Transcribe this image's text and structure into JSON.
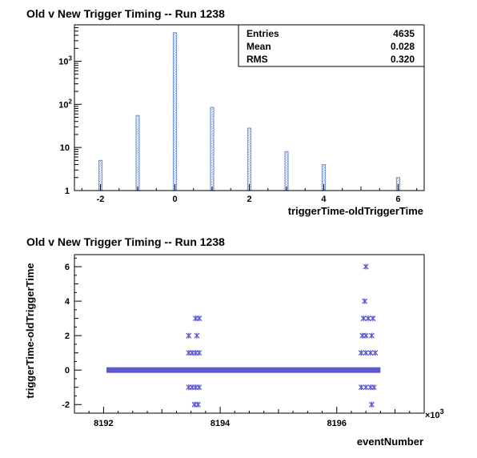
{
  "chart_data": [
    {
      "type": "bar",
      "title": "Old v New Trigger Timing -- Run 1238",
      "xlabel": "triggerTime-oldTriggerTime",
      "ylabel": "",
      "yscale": "log",
      "xlim": [
        -2.7,
        6.7
      ],
      "ylim": [
        1,
        7000
      ],
      "x_ticks": [
        -2,
        0,
        2,
        4,
        6
      ],
      "y_ticks": [
        {
          "value": 1,
          "label": "1"
        },
        {
          "value": 10,
          "label": "10"
        },
        {
          "value": 100,
          "label": "10",
          "exp": "2"
        },
        {
          "value": 1000,
          "label": "10",
          "exp": "3"
        }
      ],
      "bar_color": "#7c9bd6",
      "grid": false,
      "x": [
        -2,
        -1,
        0,
        1,
        2,
        3,
        4,
        6
      ],
      "values": [
        5,
        55,
        4600,
        85,
        28,
        8,
        4,
        2
      ],
      "stats": {
        "position": "top-right",
        "rows": [
          {
            "label": "Entries",
            "value": "4635"
          },
          {
            "label": "Mean",
            "value": "0.028"
          },
          {
            "label": "RMS",
            "value": "0.320"
          }
        ]
      }
    },
    {
      "type": "scatter",
      "title": "Old v New Trigger Timing -- Run 1238",
      "xlabel": "eventNumber",
      "ylabel": "triggerTime-oldTriggerTime",
      "x_multiplier": "×10",
      "x_multiplier_exp": "3",
      "xlim": [
        8191.5,
        8197.5
      ],
      "ylim": [
        -2.5,
        6.7
      ],
      "x_ticks": [
        {
          "value": 8192,
          "label": "8192"
        },
        {
          "value": 8194,
          "label": "8194"
        },
        {
          "value": 8196,
          "label": "8196"
        }
      ],
      "y_ticks": [
        -2,
        0,
        2,
        4,
        6
      ],
      "marker_color": "#5a5ad2",
      "grid": false,
      "baseline_band": {
        "x": [
          8192.05,
          8196.75
        ],
        "y": 0
      },
      "points": [
        {
          "x": 8193.46,
          "y": -1
        },
        {
          "x": 8193.52,
          "y": -1
        },
        {
          "x": 8193.58,
          "y": -1
        },
        {
          "x": 8193.64,
          "y": -1
        },
        {
          "x": 8193.56,
          "y": -2
        },
        {
          "x": 8193.62,
          "y": -2
        },
        {
          "x": 8193.46,
          "y": 1
        },
        {
          "x": 8193.52,
          "y": 1
        },
        {
          "x": 8193.58,
          "y": 1
        },
        {
          "x": 8193.64,
          "y": 1
        },
        {
          "x": 8193.46,
          "y": 2
        },
        {
          "x": 8193.6,
          "y": 2
        },
        {
          "x": 8193.58,
          "y": 3
        },
        {
          "x": 8193.64,
          "y": 3
        },
        {
          "x": 8196.42,
          "y": -1
        },
        {
          "x": 8196.5,
          "y": -1
        },
        {
          "x": 8196.58,
          "y": -1
        },
        {
          "x": 8196.64,
          "y": -1
        },
        {
          "x": 8196.6,
          "y": -2
        },
        {
          "x": 8196.42,
          "y": 1
        },
        {
          "x": 8196.5,
          "y": 1
        },
        {
          "x": 8196.58,
          "y": 1
        },
        {
          "x": 8196.66,
          "y": 1
        },
        {
          "x": 8196.44,
          "y": 2
        },
        {
          "x": 8196.5,
          "y": 2
        },
        {
          "x": 8196.6,
          "y": 2
        },
        {
          "x": 8196.46,
          "y": 3
        },
        {
          "x": 8196.54,
          "y": 3
        },
        {
          "x": 8196.62,
          "y": 3
        },
        {
          "x": 8196.48,
          "y": 4
        },
        {
          "x": 8196.5,
          "y": 6
        }
      ]
    }
  ]
}
